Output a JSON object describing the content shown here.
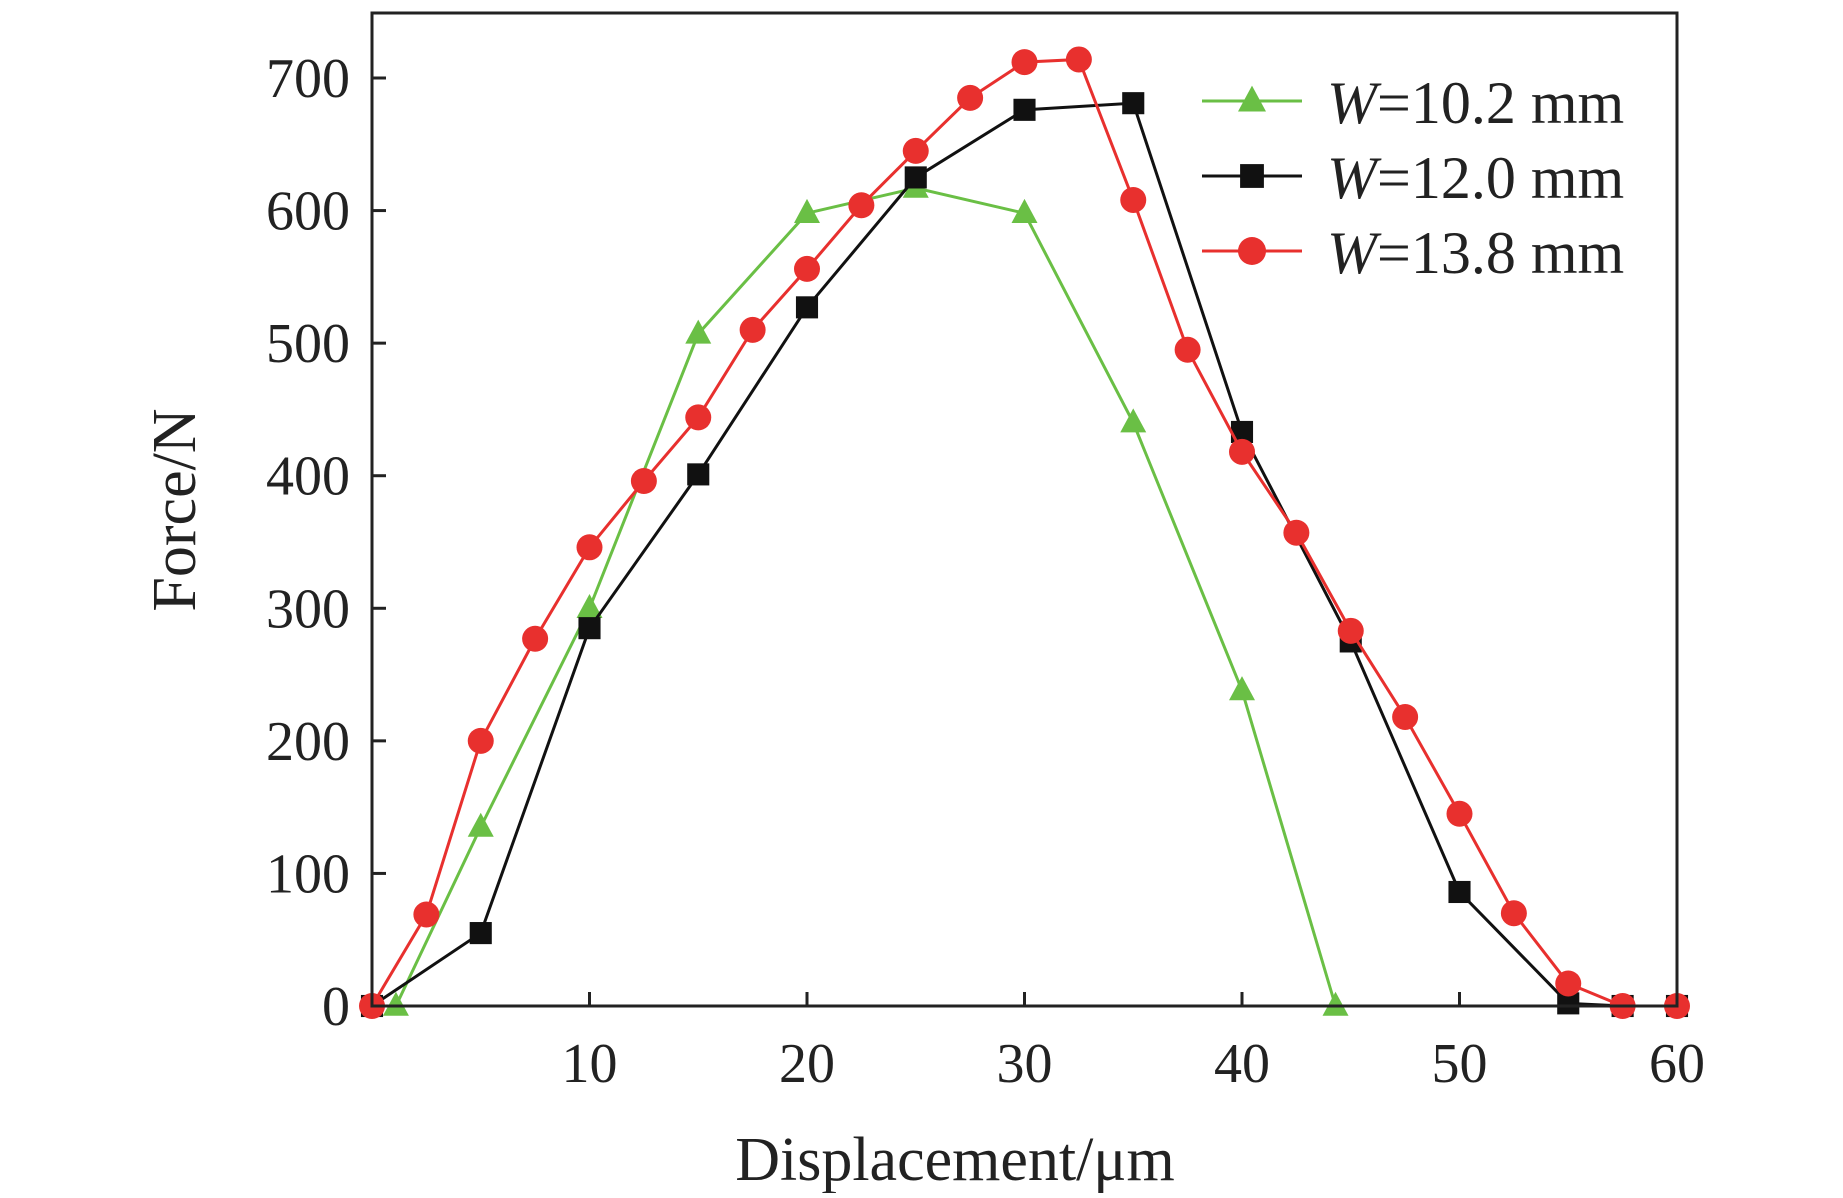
{
  "chart_data": {
    "type": "line",
    "xlabel": "Displacement/μm",
    "ylabel": "Force/N",
    "xlim": [
      0,
      60
    ],
    "ylim": [
      0,
      750
    ],
    "xticks": [
      10,
      20,
      30,
      40,
      50,
      60
    ],
    "yticks": [
      0,
      100,
      200,
      300,
      400,
      500,
      600,
      700
    ],
    "grid": false,
    "legend_position": "top-right",
    "series": [
      {
        "name_prefix": "W",
        "name_suffix": "=10.2 mm",
        "color": "#6abf45",
        "marker": "triangle",
        "x": [
          1.1,
          5,
          10,
          15,
          20,
          25,
          30,
          35,
          40,
          44.3
        ],
        "y": [
          0,
          135,
          300,
          507,
          598,
          617,
          598,
          440,
          238,
          0
        ]
      },
      {
        "name_prefix": "W",
        "name_suffix": "=12.0 mm",
        "color": "#111111",
        "marker": "square",
        "x": [
          0,
          5,
          10,
          15,
          20,
          25,
          30,
          35,
          40,
          45,
          50,
          55,
          57.5,
          60
        ],
        "y": [
          0,
          55,
          285,
          401,
          527,
          625,
          676,
          681,
          433,
          275,
          86,
          2,
          0,
          0
        ]
      },
      {
        "name_prefix": "W",
        "name_suffix": "=13.8 mm",
        "color": "#e8302e",
        "marker": "circle",
        "x": [
          0,
          2.5,
          5,
          7.5,
          10,
          12.5,
          15,
          17.5,
          20,
          22.5,
          25,
          27.5,
          30,
          32.5,
          35,
          37.5,
          40,
          42.5,
          45,
          47.5,
          50,
          52.5,
          55,
          57.5,
          60
        ],
        "y": [
          0,
          69,
          200,
          277,
          346,
          396,
          444,
          510,
          556,
          604,
          645,
          685,
          712,
          714,
          608,
          495,
          418,
          357,
          283,
          218,
          145,
          70,
          17,
          0,
          0
        ]
      }
    ]
  }
}
